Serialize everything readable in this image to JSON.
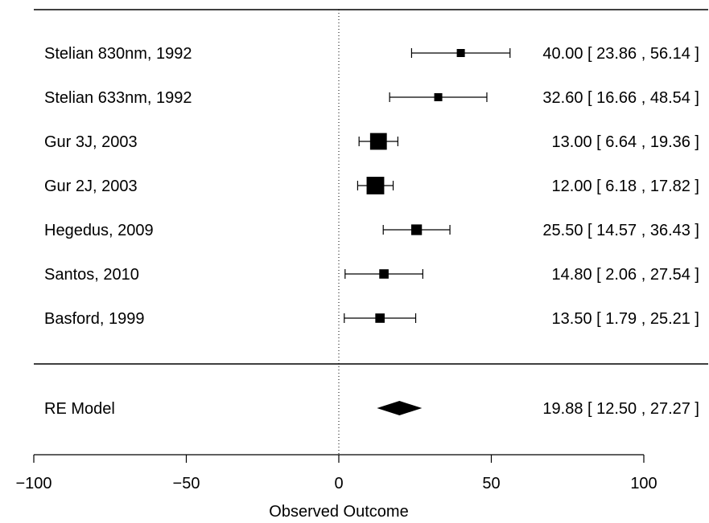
{
  "chart_data": {
    "type": "forest",
    "xlabel": "Observed Outcome",
    "xlim": [
      -100,
      100
    ],
    "xticks": [
      -100,
      -50,
      0,
      50,
      100
    ],
    "xtick_labels": [
      "−100",
      "−50",
      "0",
      "50",
      "100"
    ],
    "reference_line": 0,
    "studies": [
      {
        "label": "Stelian 830nm, 1992",
        "estimate": 40.0,
        "ci_low": 23.86,
        "ci_high": 56.14,
        "ci_text": "40.00 [ 23.86 , 56.14 ]",
        "weight": 1.0
      },
      {
        "label": "Stelian 633nm, 1992",
        "estimate": 32.6,
        "ci_low": 16.66,
        "ci_high": 48.54,
        "ci_text": "32.60 [ 16.66 , 48.54 ]",
        "weight": 1.0
      },
      {
        "label": "Gur 3J, 2003",
        "estimate": 13.0,
        "ci_low": 6.64,
        "ci_high": 19.36,
        "ci_text": "13.00 [  6.64 , 19.36 ]",
        "weight": 3.0
      },
      {
        "label": "Gur 2J, 2003",
        "estimate": 12.0,
        "ci_low": 6.18,
        "ci_high": 17.82,
        "ci_text": "12.00 [  6.18 , 17.82 ]",
        "weight": 3.2
      },
      {
        "label": "Hegedus, 2009",
        "estimate": 25.5,
        "ci_low": 14.57,
        "ci_high": 36.43,
        "ci_text": "25.50 [ 14.57 , 36.43 ]",
        "weight": 1.6
      },
      {
        "label": "Santos, 2010",
        "estimate": 14.8,
        "ci_low": 2.06,
        "ci_high": 27.54,
        "ci_text": "14.80 [  2.06 , 27.54 ]",
        "weight": 1.3
      },
      {
        "label": "Basford, 1999",
        "estimate": 13.5,
        "ci_low": 1.79,
        "ci_high": 25.21,
        "ci_text": "13.50 [  1.79 , 25.21 ]",
        "weight": 1.3
      }
    ],
    "summary": {
      "label": "RE Model",
      "estimate": 19.88,
      "ci_low": 12.5,
      "ci_high": 27.27,
      "ci_text": "19.88 [ 12.50 , 27.27 ]"
    }
  }
}
